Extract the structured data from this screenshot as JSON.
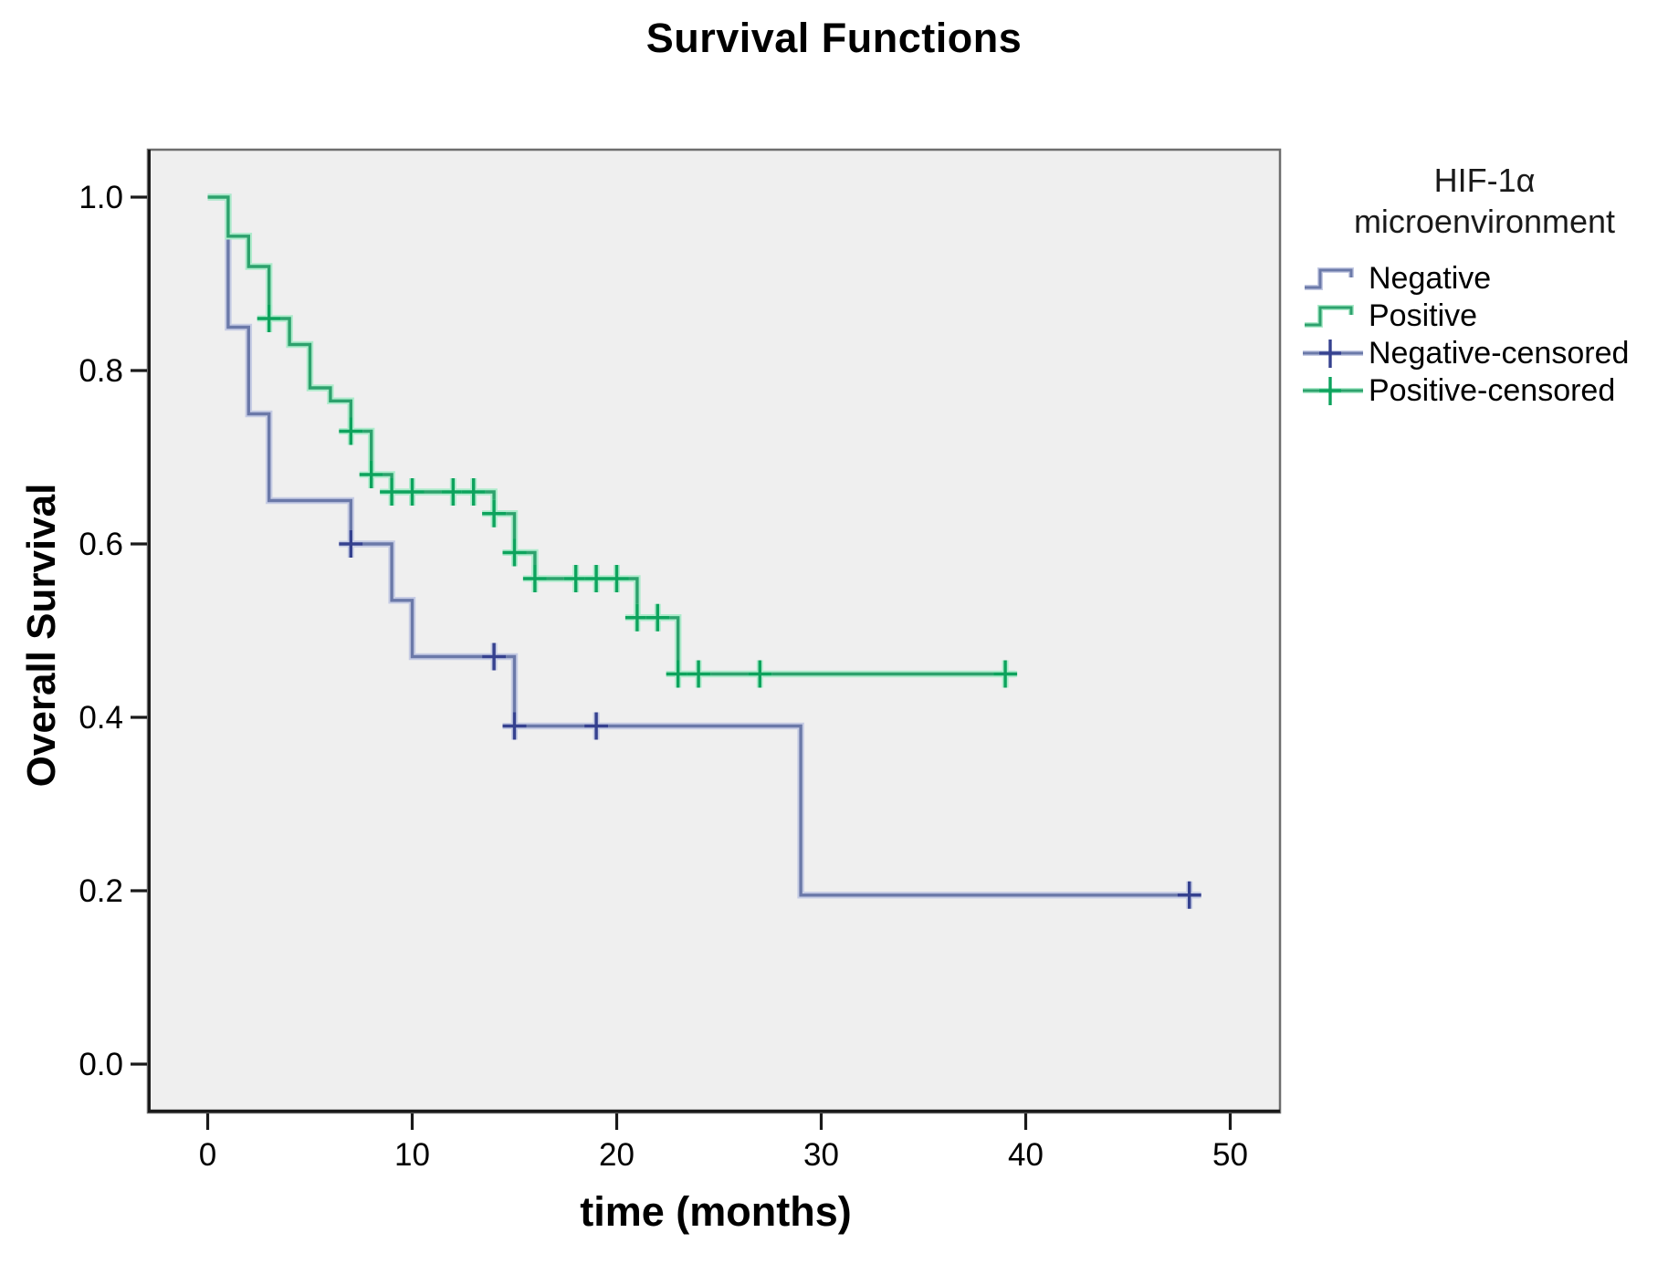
{
  "title": "Survival Functions",
  "y_axis": {
    "label": "Overall Survival",
    "ticks": [
      "1.0",
      "0.8",
      "0.6",
      "0.4",
      "0.2",
      "0.0"
    ]
  },
  "x_axis": {
    "label": "time (months)",
    "ticks": [
      "0",
      "10",
      "20",
      "30",
      "40",
      "50"
    ]
  },
  "legend": {
    "title_line1": "HIF-1α",
    "title_line2": "microenvironment",
    "entries": [
      {
        "label": "Negative",
        "kind": "step",
        "series": "Negative"
      },
      {
        "label": "Positive",
        "kind": "step",
        "series": "Positive"
      },
      {
        "label": "Negative-censored",
        "kind": "censor",
        "series": "Negative"
      },
      {
        "label": "Positive-censored",
        "kind": "censor",
        "series": "Positive"
      }
    ]
  },
  "colors": {
    "plot_bg": "#EFEFEF",
    "frame": "#6E6E6E",
    "axis": "#1A1A1A",
    "negative_line": "#6B79A9",
    "negative_halo": "#C6CCE4",
    "negative_censor": "#35418F",
    "positive_line": "#2DA26D",
    "positive_halo": "#AEEBCC",
    "positive_censor": "#0DA35D"
  },
  "chart_data": {
    "type": "line",
    "subtype": "kaplan-meier-step",
    "title": "Survival Functions",
    "xlabel": "time (months)",
    "ylabel": "Overall Survival",
    "xlim": [
      0,
      50
    ],
    "ylim": [
      0.0,
      1.0
    ],
    "x_ticks": [
      0,
      10,
      20,
      30,
      40,
      50
    ],
    "y_ticks": [
      1.0,
      0.8,
      0.6,
      0.4,
      0.2,
      0.0
    ],
    "grid": false,
    "legend_position": "right",
    "legend_title": "HIF-1α microenvironment",
    "series": [
      {
        "name": "Negative",
        "steps": [
          [
            0,
            1.0
          ],
          [
            1,
            0.85
          ],
          [
            2,
            0.75
          ],
          [
            3,
            0.65
          ],
          [
            7,
            0.6
          ],
          [
            9,
            0.535
          ],
          [
            10,
            0.47
          ],
          [
            15,
            0.39
          ],
          [
            29,
            0.195
          ]
        ],
        "end_time": 48.5,
        "censored": [
          [
            7,
            0.6
          ],
          [
            14,
            0.47
          ],
          [
            15,
            0.39
          ],
          [
            19,
            0.39
          ],
          [
            48,
            0.195
          ]
        ]
      },
      {
        "name": "Positive",
        "steps": [
          [
            0,
            1.0
          ],
          [
            1,
            0.955
          ],
          [
            2,
            0.92
          ],
          [
            3,
            0.86
          ],
          [
            4,
            0.83
          ],
          [
            5,
            0.78
          ],
          [
            6,
            0.765
          ],
          [
            7,
            0.73
          ],
          [
            8,
            0.68
          ],
          [
            9,
            0.66
          ],
          [
            14,
            0.635
          ],
          [
            15,
            0.59
          ],
          [
            16,
            0.56
          ],
          [
            21,
            0.515
          ],
          [
            23,
            0.45
          ]
        ],
        "end_time": 39.5,
        "censored": [
          [
            3,
            0.86
          ],
          [
            7,
            0.73
          ],
          [
            8,
            0.68
          ],
          [
            9,
            0.66
          ],
          [
            10,
            0.66
          ],
          [
            12,
            0.66
          ],
          [
            13,
            0.66
          ],
          [
            14,
            0.635
          ],
          [
            15,
            0.59
          ],
          [
            16,
            0.56
          ],
          [
            18,
            0.56
          ],
          [
            19,
            0.56
          ],
          [
            20,
            0.56
          ],
          [
            21,
            0.515
          ],
          [
            22,
            0.515
          ],
          [
            23,
            0.45
          ],
          [
            24,
            0.45
          ],
          [
            27,
            0.45
          ],
          [
            39,
            0.45
          ]
        ]
      }
    ]
  }
}
